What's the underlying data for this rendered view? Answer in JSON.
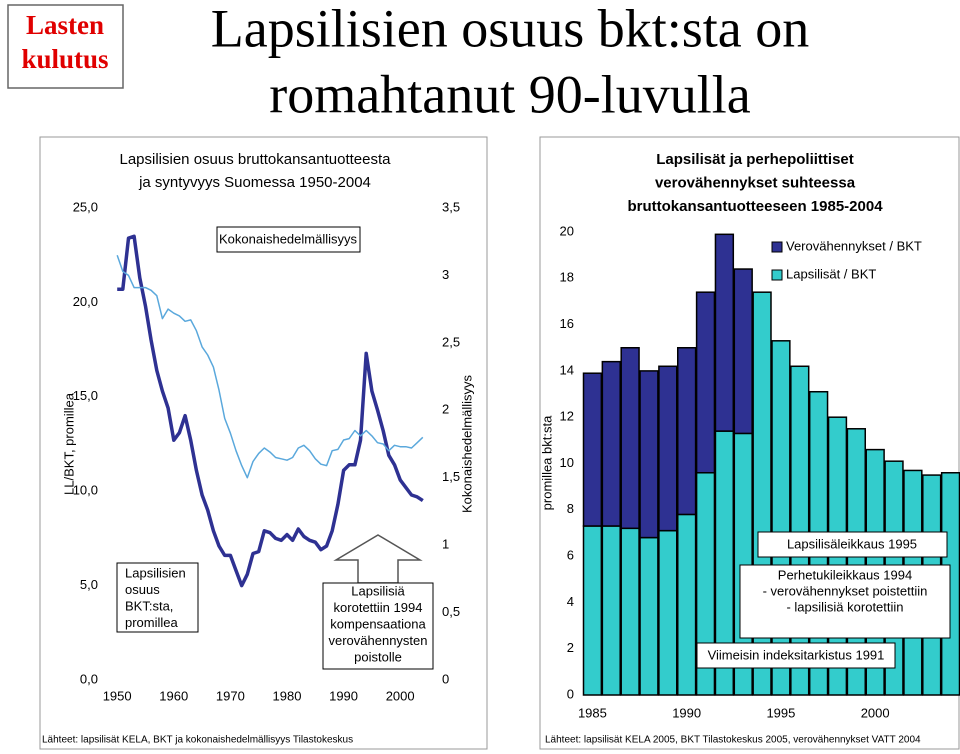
{
  "header": {
    "tag": [
      "Lasten",
      "kulutus"
    ],
    "title": [
      "Lapsilisien osuus bkt:sta on",
      "romahtanut 90-luvulla"
    ]
  },
  "chart_data": [
    {
      "type": "line",
      "title": [
        "Lapsilisien osuus bruttokansantuotteesta",
        "ja syntyvyys Suomessa 1950-2004"
      ],
      "ylabel": "LL/BKT, promillea",
      "y2label": "Kokonaishedelmällisyys",
      "x": [
        1950,
        1951,
        1952,
        1953,
        1954,
        1955,
        1956,
        1957,
        1958,
        1959,
        1960,
        1961,
        1962,
        1963,
        1964,
        1965,
        1966,
        1967,
        1968,
        1969,
        1970,
        1971,
        1972,
        1973,
        1974,
        1975,
        1976,
        1977,
        1978,
        1979,
        1980,
        1981,
        1982,
        1983,
        1984,
        1985,
        1986,
        1987,
        1988,
        1989,
        1990,
        1991,
        1992,
        1993,
        1994,
        1995,
        1996,
        1997,
        1998,
        1999,
        2000,
        2001,
        2002,
        2003,
        2004
      ],
      "xlim": [
        1947.5,
        2005.8
      ],
      "xticks": [
        1950,
        1960,
        1970,
        1980,
        1990,
        2000
      ],
      "ylim": [
        0,
        25
      ],
      "yticks": [
        {
          "value": 0,
          "label": "0,0"
        },
        {
          "value": 5,
          "label": "5,0"
        },
        {
          "value": 10,
          "label": "10,0"
        },
        {
          "value": 15,
          "label": "15,0"
        },
        {
          "value": 20,
          "label": "20,0"
        },
        {
          "value": 25,
          "label": "25,0"
        }
      ],
      "y2lim": [
        0,
        3.5
      ],
      "y2ticks": [
        0,
        {
          "value": 0.5,
          "label": "0,5"
        },
        1,
        {
          "value": 1.5,
          "label": "1,5"
        },
        2,
        {
          "value": 2.5,
          "label": "2,5"
        },
        3,
        {
          "value": 3.5,
          "label": "3,5"
        }
      ],
      "series": [
        {
          "color": "#2e3192",
          "values": [
            20.7,
            20.7,
            23.4,
            23.5,
            21.3,
            19.8,
            18.0,
            16.4,
            15.3,
            14.4,
            12.7,
            13.1,
            14.0,
            12.7,
            11.1,
            9.8,
            9.0,
            7.9,
            7.1,
            6.6,
            6.6,
            5.8,
            5.0,
            5.6,
            6.7,
            6.8,
            7.9,
            7.8,
            7.5,
            7.4,
            7.7,
            7.4,
            8.0,
            7.6,
            7.4,
            7.3,
            6.9,
            7.1,
            7.9,
            9.3,
            11.1,
            11.4,
            11.4,
            12.7,
            17.3,
            15.3,
            14.3,
            13.2,
            11.9,
            11.4,
            10.6,
            10.2,
            9.8,
            9.7,
            9.5
          ]
        },
        {
          "color": "#5aa8dc",
          "axis": "y2",
          "values": [
            3.15,
            3.03,
            3.0,
            2.91,
            2.91,
            2.91,
            2.89,
            2.85,
            2.68,
            2.75,
            2.72,
            2.7,
            2.66,
            2.67,
            2.59,
            2.47,
            2.41,
            2.32,
            2.15,
            1.94,
            1.83,
            1.7,
            1.59,
            1.5,
            1.62,
            1.68,
            1.72,
            1.69,
            1.65,
            1.64,
            1.63,
            1.65,
            1.72,
            1.74,
            1.7,
            1.64,
            1.6,
            1.59,
            1.7,
            1.71,
            1.78,
            1.79,
            1.85,
            1.81,
            1.85,
            1.81,
            1.76,
            1.75,
            1.7,
            1.74,
            1.73,
            1.73,
            1.72,
            1.76,
            1.8
          ]
        }
      ],
      "annotations": [
        [
          "Kokonaishedelmällisyys"
        ],
        [
          "Lapsilisien",
          "osuus",
          "BKT:sta,",
          "promillea"
        ],
        [
          "Lapsilisiä",
          "korotettiin 1994",
          "kompensaationa",
          "verovähennysten",
          "poistolle"
        ]
      ],
      "source": "Lähteet: lapsilisät KELA, BKT ja kokonaishedelmällisyys Tilastokeskus"
    },
    {
      "type": "stacked_bar",
      "title": [
        "Lapsilisät ja perhepoliittiset",
        "verovähennykset suhteessa",
        "bruttokansantuotteeseen 1985-2004"
      ],
      "ylabel": "promillea bkt:sta",
      "categories": [
        "1985",
        null,
        null,
        null,
        null,
        "1990",
        null,
        null,
        null,
        null,
        "1995",
        null,
        null,
        null,
        null,
        "2000",
        null,
        null,
        null,
        null
      ],
      "ylim": [
        0,
        20
      ],
      "yticks": [
        0,
        2,
        4,
        6,
        8,
        10,
        12,
        14,
        16,
        18,
        20
      ],
      "legend": "upper right",
      "series": [
        {
          "name": "Verovähennykset / BKT",
          "color": "#2e3192",
          "values": [
            6.6,
            7.1,
            7.8,
            7.2,
            7.1,
            7.2,
            7.8,
            8.5,
            7.1,
            0,
            0,
            0,
            0,
            0,
            0,
            0,
            0,
            0,
            0,
            0
          ]
        },
        {
          "name": "Lapsilisät / BKT",
          "color": "#33cccc",
          "values": [
            7.3,
            7.3,
            7.2,
            6.8,
            7.1,
            7.8,
            9.6,
            11.4,
            11.3,
            17.4,
            15.3,
            14.2,
            13.1,
            12.0,
            11.5,
            10.6,
            10.1,
            9.7,
            9.5,
            9.6
          ]
        }
      ],
      "annotations": [
        [
          "Lapsilisäleikkaus 1995"
        ],
        [
          "Perhetukileikkaus 1994",
          "- verovähennykset poistettiin",
          "- lapsilisiä korotettiin"
        ],
        [
          "Viimeisin indeksitarkistus 1991"
        ]
      ],
      "source": "Lähteet: lapsilisät KELA 2005, BKT Tilastokeskus 2005, verovähennykset VATT 2004"
    }
  ]
}
